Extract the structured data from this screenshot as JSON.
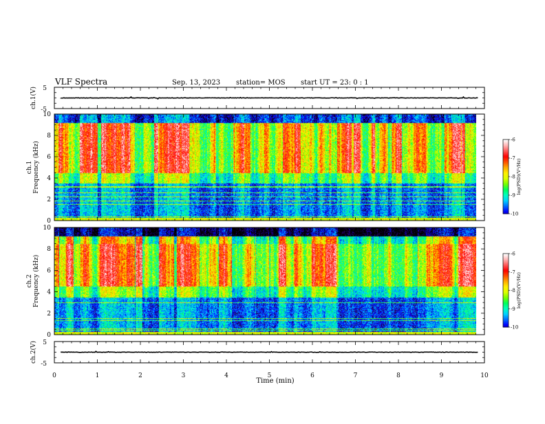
{
  "header": {
    "title": "VLF Spectra",
    "date": "Sep. 13, 2023",
    "station": "station= MOS",
    "start": "start  UT =   23: 0  : 1"
  },
  "colors": {
    "palette": [
      "#000000",
      "#2a0a78",
      "#0000ff",
      "#0066ff",
      "#00ccff",
      "#00ffcc",
      "#00ff66",
      "#66ff00",
      "#ccff00",
      "#ffff00",
      "#ffcc00",
      "#ff6600",
      "#ff0000",
      "#ff4444",
      "#ffaaaa",
      "#ffffff"
    ]
  },
  "chart_data": [
    {
      "type": "line",
      "name": "ch1-waveform",
      "ylabel": "ch.1(V)",
      "xlim": [
        0,
        10
      ],
      "ylim": [
        -5,
        5
      ],
      "yticks": [
        "5",
        "-5"
      ],
      "level": 0.0
    },
    {
      "type": "heatmap",
      "name": "ch1-spectrogram",
      "ylabel": "ch.1\nFrequency (kHz)",
      "ylabel_top": "ch.1",
      "ylabel_bottom": "Frequency (kHz)",
      "xlim": [
        0,
        9.8
      ],
      "ylim": [
        0,
        10
      ],
      "yticks": [
        "0",
        "2",
        "4",
        "6",
        "8",
        "10"
      ],
      "colorbar": {
        "label": "log(PSD)(V²/Hz)",
        "range": [
          -10,
          -6
        ],
        "ticks": [
          "-6",
          "-7",
          "-8",
          "-9",
          "-10"
        ]
      },
      "seed": 17
    },
    {
      "type": "heatmap",
      "name": "ch2-spectrogram",
      "ylabel": "ch.2\nFrequency (kHz)",
      "ylabel_top": "ch.2",
      "ylabel_bottom": "Frequency (kHz)",
      "xlim": [
        0,
        9.8
      ],
      "ylim": [
        0,
        10
      ],
      "yticks": [
        "0",
        "2",
        "4",
        "6",
        "8",
        "10"
      ],
      "colorbar": {
        "label": "log(PSD)(V²/Hz)",
        "range": [
          -10,
          -6
        ],
        "ticks": [
          "-6",
          "-7",
          "-8",
          "-9",
          "-10"
        ]
      },
      "seed": 29
    },
    {
      "type": "line",
      "name": "ch2-waveform",
      "ylabel": "ch.2(V)",
      "xlim": [
        0,
        10
      ],
      "ylim": [
        -5,
        5
      ],
      "yticks": [
        "5",
        "-5"
      ],
      "level": 0.0
    }
  ],
  "xaxis": {
    "label": "Time  (min)",
    "ticks": [
      "0",
      "1",
      "2",
      "3",
      "4",
      "5",
      "6",
      "7",
      "8",
      "9",
      "10"
    ]
  }
}
